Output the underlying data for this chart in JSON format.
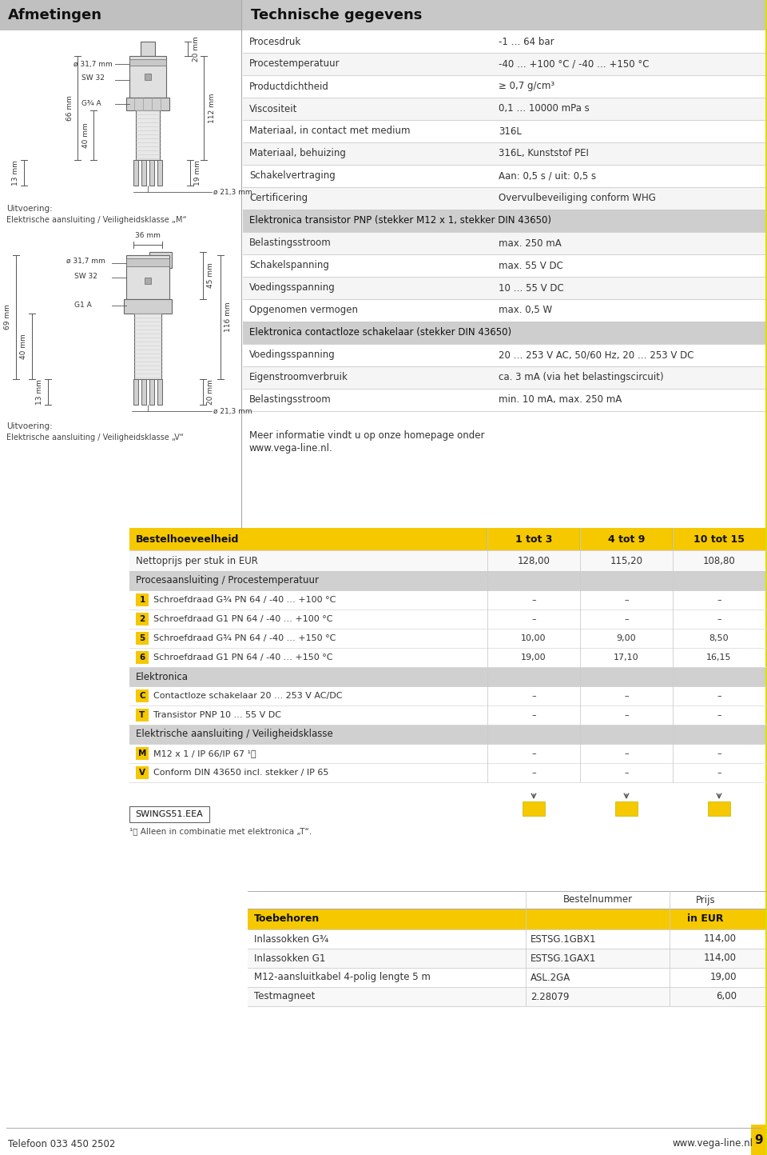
{
  "page_bg": "#ffffff",
  "yellow": "#f5c800",
  "header_bg": "#c8c8c8",
  "section_bg": "#d0d0d0",
  "left_header": "Afmetingen",
  "right_header": "Technische gegevens",
  "tech_rows": [
    {
      "label": "Procesdruk",
      "value": "-1 … 64 bar",
      "shaded": false
    },
    {
      "label": "Procestemperatuur",
      "value": "-40 … +100 °C / -40 … +150 °C",
      "shaded": false
    },
    {
      "label": "Productdichtheid",
      "value": "≥ 0,7 g/cm³",
      "shaded": false
    },
    {
      "label": "Viscositeit",
      "value": "0,1 … 10000 mPa s",
      "shaded": false
    },
    {
      "label": "Materiaal, in contact met medium",
      "value": "316L",
      "shaded": false
    },
    {
      "label": "Materiaal, behuizing",
      "value": "316L, Kunststof PEI",
      "shaded": false
    },
    {
      "label": "Schakelvertraging",
      "value": "Aan: 0,5 s / uit: 0,5 s",
      "shaded": false
    },
    {
      "label": "Certificering",
      "value": "Overvulbeveiliging conform WHG",
      "shaded": false
    },
    {
      "label": "Elektronica transistor PNP (stekker M12 x 1, stekker DIN 43650)",
      "value": "",
      "shaded": true
    },
    {
      "label": "Belastingsstroom",
      "value": "max. 250 mA",
      "shaded": false
    },
    {
      "label": "Schakelspanning",
      "value": "max. 55 V DC",
      "shaded": false
    },
    {
      "label": "Voedingsspanning",
      "value": "10 … 55 V DC",
      "shaded": false
    },
    {
      "label": "Opgenomen vermogen",
      "value": "max. 0,5 W",
      "shaded": false
    },
    {
      "label": "Elektronica contactloze schakelaar (stekker DIN 43650)",
      "value": "",
      "shaded": true
    },
    {
      "label": "Voedingsspanning",
      "value": "20 … 253 V AC, 50/60 Hz, 20 … 253 V DC",
      "shaded": false
    },
    {
      "label": "Eigenstroomverbruik",
      "value": "ca. 3 mA (via het belastingscircuit)",
      "shaded": false
    },
    {
      "label": "Belastingsstroom",
      "value": "min. 10 mA, max. 250 mA",
      "shaded": false
    }
  ],
  "info_text1": "Meer informatie vindt u op onze homepage onder",
  "info_text2": "www.vega-line.nl.",
  "order_header": [
    "Bestelhoeveelheid",
    "1 tot 3",
    "4 tot 9",
    "10 tot 15"
  ],
  "net_price_row": [
    "Nettoprijs per stuk in EUR",
    "128,00",
    "115,20",
    "108,80"
  ],
  "order_sections": [
    {
      "header": "Procesaansluiting / Procestemperatuur",
      "rows": [
        {
          "num": "1",
          "label": "Schroefdraad G¾ PN 64 / -40 … +100 °C",
          "v1": "–",
          "v2": "–",
          "v3": "–"
        },
        {
          "num": "2",
          "label": "Schroefdraad G1 PN 64 / -40 … +100 °C",
          "v1": "–",
          "v2": "–",
          "v3": "–"
        },
        {
          "num": "5",
          "label": "Schroefdraad G¾ PN 64 / -40 … +150 °C",
          "v1": "10,00",
          "v2": "9,00",
          "v3": "8,50"
        },
        {
          "num": "6",
          "label": "Schroefdraad G1 PN 64 / -40 … +150 °C",
          "v1": "19,00",
          "v2": "17,10",
          "v3": "16,15"
        }
      ]
    },
    {
      "header": "Elektronica",
      "rows": [
        {
          "num": "C",
          "label": "Contactloze schakelaar 20 … 253 V AC/DC",
          "v1": "–",
          "v2": "–",
          "v3": "–"
        },
        {
          "num": "T",
          "label": "Transistor PNP 10 … 55 V DC",
          "v1": "–",
          "v2": "–",
          "v3": "–"
        }
      ]
    },
    {
      "header": "Elektrische aansluiting / Veiligheidsklasse",
      "rows": [
        {
          "num": "M",
          "label": "M12 x 1 / IP 66/IP 67 ¹⧩",
          "v1": "–",
          "v2": "–",
          "v3": "–"
        },
        {
          "num": "V",
          "label": "Conform DIN 43650 incl. stekker / IP 65",
          "v1": "–",
          "v2": "–",
          "v3": "–"
        }
      ]
    }
  ],
  "order_code": "SWINGS51.EEA",
  "footnote": "¹⧩ Alleen in combinatie met elektronica „T“.",
  "accessories_toebehoren": "Toebehoren",
  "accessories_in_eur": "in EUR",
  "accessories_bestelnummer": "Bestelnummer",
  "accessories_prijs": "Prijs",
  "accessories": [
    {
      "label": "Inlassokken G¾",
      "num": "ESTSG.1GBX1",
      "price": "114,00"
    },
    {
      "label": "Inlassokken G1",
      "num": "ESTSG.1GAX1",
      "price": "114,00"
    },
    {
      "label": "M12-aansluitkabel 4-polig lengte 5 m",
      "num": "ASL.2GA",
      "price": "19,00"
    },
    {
      "label": "Testmagneet",
      "num": "2.28079",
      "price": "6,00"
    }
  ],
  "footer_left": "Telefoon 033 450 2502",
  "footer_right": "www.vega-line.nl",
  "page_number": "9",
  "col_split": 302
}
